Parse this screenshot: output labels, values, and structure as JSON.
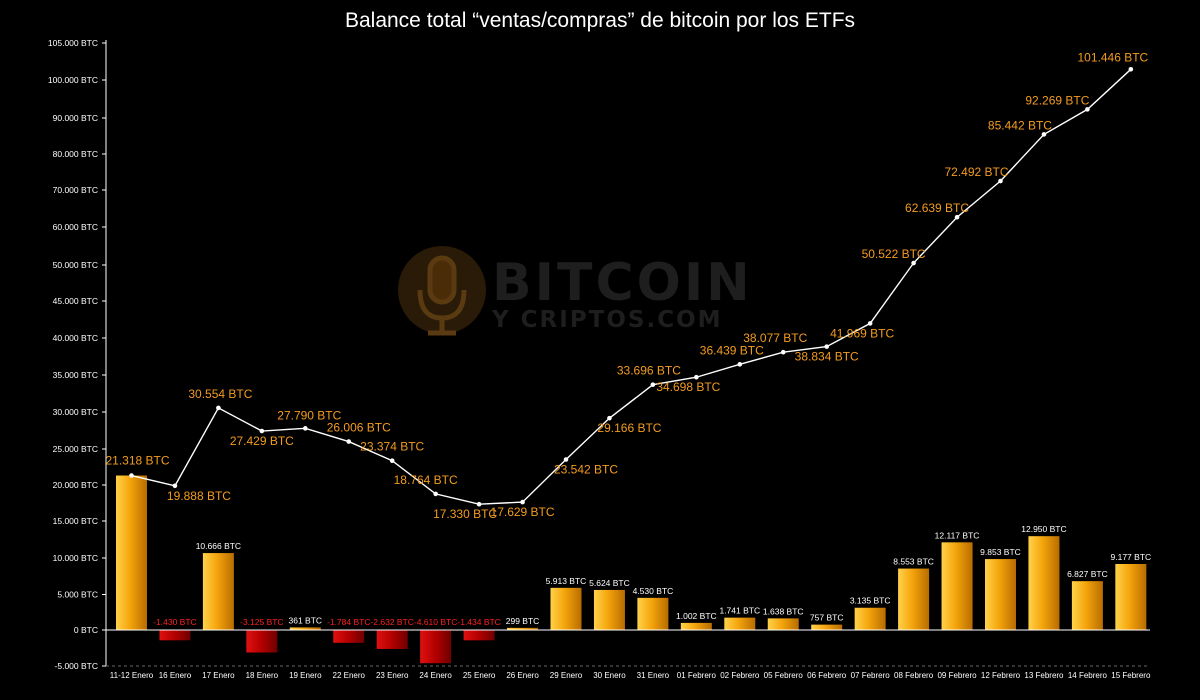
{
  "chart_data": {
    "type": "bar+line",
    "title": "Balance total “ventas/compras” de bitcoin por los ETFs",
    "watermark": {
      "line1": "BITCOIN",
      "line2": "Y CRIPTOS.COM"
    },
    "ylim": [
      -5000,
      105000
    ],
    "y_ticks": [
      {
        "value": -5000,
        "label": "-5.000 BTC"
      },
      {
        "value": 0,
        "label": "0 BTC"
      },
      {
        "value": 5000,
        "label": "5.000 BTC"
      },
      {
        "value": 10000,
        "label": "10.000 BTC"
      },
      {
        "value": 15000,
        "label": "15.000 BTC"
      },
      {
        "value": 20000,
        "label": "20.000 BTC"
      },
      {
        "value": 25000,
        "label": "25.000 BTC"
      },
      {
        "value": 30000,
        "label": "30.000 BTC"
      },
      {
        "value": 35000,
        "label": "35.000 BTC"
      },
      {
        "value": 40000,
        "label": "40.000 BTC"
      },
      {
        "value": 45000,
        "label": "45.000 BTC"
      },
      {
        "value": 50000,
        "label": "50.000 BTC"
      },
      {
        "value": 60000,
        "label": "60.000 BTC"
      },
      {
        "value": 70000,
        "label": "70.000 BTC"
      },
      {
        "value": 80000,
        "label": "80.000 BTC"
      },
      {
        "value": 90000,
        "label": "90.000 BTC"
      },
      {
        "value": 100000,
        "label": "100.000 BTC"
      },
      {
        "value": 105000,
        "label": "105.000 BTC"
      }
    ],
    "categories": [
      "11-12 Enero",
      "16 Enero",
      "17 Enero",
      "18 Enero",
      "19 Enero",
      "22 Enero",
      "23 Enero",
      "24 Enero",
      "25 Enero",
      "26 Enero",
      "29 Enero",
      "30 Enero",
      "31 Enero",
      "01 Febrero",
      "02 Febrero",
      "05 Febrero",
      "06 Febrero",
      "07 Febrero",
      "08 Febrero",
      "09 Febrero",
      "12 Febrero",
      "13 Febrero",
      "14 Febrero",
      "15 Febrero"
    ],
    "bars": {
      "values": [
        21318,
        -1430,
        10666,
        -3125,
        361,
        -1784,
        -2632,
        -4610,
        -1434,
        299,
        5913,
        5624,
        4530,
        1002,
        1741,
        1638,
        757,
        3135,
        8553,
        12117,
        9853,
        12950,
        6827,
        9177
      ],
      "labels": [
        "",
        "-1.430 BTC",
        "10.666 BTC",
        "-3.125 BTC",
        "361 BTC",
        "-1.784 BTC",
        "-2.632 BTC",
        "-4.610 BTC",
        "-1.434 BTC",
        "299 BTC",
        "5.913 BTC",
        "5.624 BTC",
        "4.530 BTC",
        "1.002 BTC",
        "1.741 BTC",
        "1.638 BTC",
        "757 BTC",
        "3.135 BTC",
        "8.553 BTC",
        "12.117 BTC",
        "9.853 BTC",
        "12.950 BTC",
        "6.827 BTC",
        "9.177 BTC"
      ],
      "positive_color": "#f2a20c",
      "negative_color": "#c00000"
    },
    "line": {
      "values": [
        21318,
        19888,
        30554,
        27429,
        27790,
        26006,
        23374,
        18764,
        17330,
        17629,
        23542,
        29166,
        33696,
        34698,
        36439,
        38077,
        38834,
        41969,
        50522,
        62639,
        72492,
        85442,
        92269,
        101446
      ],
      "labels": [
        "21.318 BTC",
        "19.888 BTC",
        "30.554 BTC",
        "27.429 BTC",
        "27.790 BTC",
        "26.006 BTC",
        "23.374 BTC",
        "18.764 BTC",
        "17.330 BTC",
        "17.629 BTC",
        "23.542 BTC",
        "29.166 BTC",
        "33.696 BTC",
        "34.698 BTC",
        "36.439 BTC",
        "38.077 BTC",
        "38.834 BTC",
        "41.969 BTC",
        "50.522 BTC",
        "62.639 BTC",
        "72.492 BTC",
        "85.442 BTC",
        "92.269 BTC",
        "101.446 BTC"
      ],
      "color": "#ffffff",
      "label_color": "#f39c1f"
    },
    "grid": false,
    "legend": "none"
  }
}
